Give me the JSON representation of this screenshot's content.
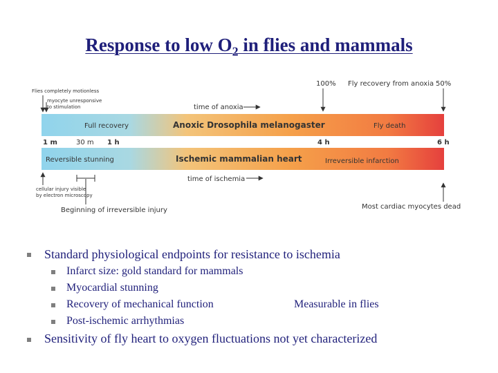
{
  "title": {
    "main": "Response to low O",
    "sub": "2",
    "tail": " in flies and mammals"
  },
  "diagram": {
    "fly_bar_label": "Anoxic Drosophila melanogaster",
    "fly_full_recovery": "Full recovery",
    "fly_death": "Fly death",
    "heart_bar_label": "Ischemic mammalian heart",
    "reversible_stunning": "Reversible stunning",
    "irreversible_infarction": "Irreversible infarction",
    "times": {
      "t1m": "1 m",
      "t30m": "30 m",
      "t1h": "1 h",
      "t4h": "4 h",
      "t6h": "6 h"
    },
    "time_of_anoxia": "time of anoxia",
    "time_of_ischemia": "time of ischemia",
    "pct_100": "100%",
    "pct_50": "50%",
    "fly_recovery_from_anoxia": "Fly recovery from anoxia",
    "flies_motionless": "Flies completely motionless",
    "myocyte_line1": "myocyte unresponsive",
    "myocyte_line2": "to stimulation",
    "cellular_line1": "cellular injury visible",
    "cellular_line2": "by electron microscopy",
    "beginning_irreversible": "Beginning of irreversible injury",
    "most_cardiac_dead": "Most cardiac myocytes dead",
    "colors": {
      "blue": "#8fd3ec",
      "orange": "#f5a14a",
      "red": "#e8433e",
      "title": "#1f1f7a",
      "bullet": "#7f7f7f"
    }
  },
  "bullets": {
    "b1": "Standard physiological endpoints for resistance to ischemia",
    "sub1": "Infarct size: gold standard for mammals",
    "sub2": "Myocardial stunning",
    "sub3": "Recovery of mechanical function",
    "sub3_note": "Measurable in flies",
    "sub4": "Post-ischemic arrhythmias",
    "b2": "Sensitivity of fly heart to oxygen fluctuations not yet characterized"
  }
}
